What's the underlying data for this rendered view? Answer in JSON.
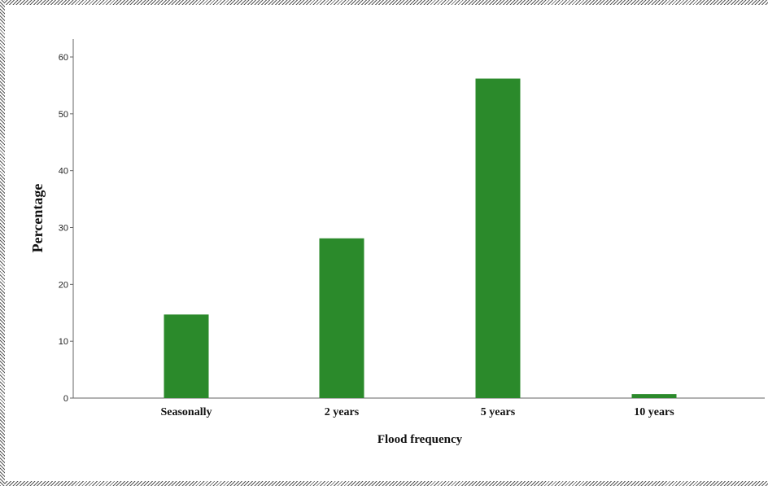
{
  "chart_data": {
    "type": "bar",
    "categories": [
      "Seasonally",
      "2 years",
      "5 years",
      "10 years"
    ],
    "values": [
      14.7,
      28.1,
      56.2,
      0.7
    ],
    "xlabel": "Flood frequency",
    "ylabel": "Percentage",
    "ylim": [
      0,
      63
    ],
    "yticks": [
      0,
      10,
      20,
      30,
      40,
      50,
      60
    ],
    "bar_color": "#2b8a2b",
    "grid": false,
    "legend": "none"
  }
}
